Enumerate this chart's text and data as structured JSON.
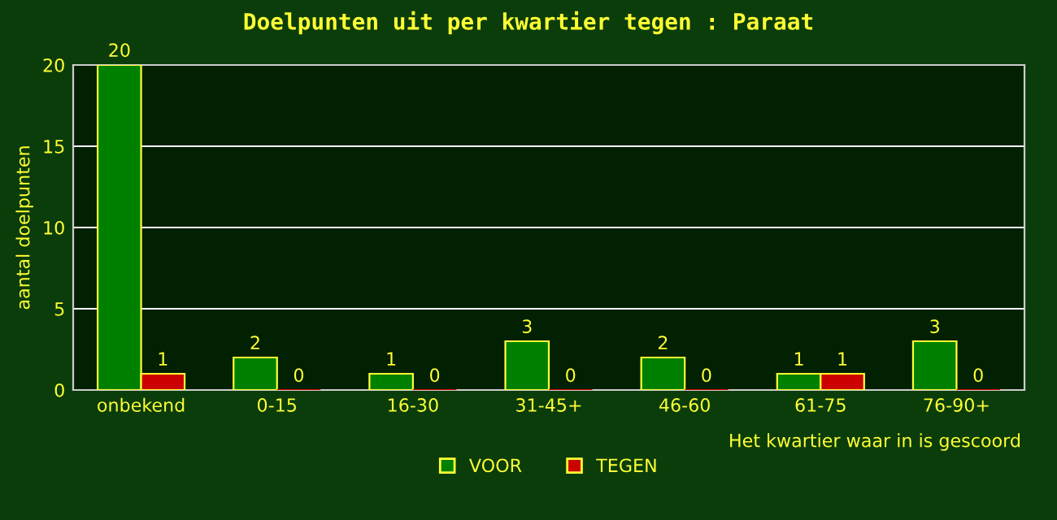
{
  "chart_data": {
    "type": "bar",
    "title": "Doelpunten uit per kwartier tegen : Paraat",
    "xlabel": "Het kwartier waar in is gescoord",
    "ylabel": "aantal doelpunten",
    "categories": [
      "onbekend",
      "0-15",
      "16-30",
      "31-45+",
      "46-60",
      "61-75",
      "76-90+"
    ],
    "series": [
      {
        "name": "VOOR",
        "color": "#008000",
        "values": [
          20,
          2,
          1,
          3,
          2,
          1,
          3
        ]
      },
      {
        "name": "TEGEN",
        "color": "#cc0000",
        "values": [
          1,
          0,
          0,
          0,
          0,
          1,
          0
        ]
      }
    ],
    "ylim": [
      0,
      20
    ],
    "yticks": [
      0,
      5,
      10,
      15,
      20
    ],
    "grid": "y",
    "legend": "bottom",
    "data_labels": true
  }
}
